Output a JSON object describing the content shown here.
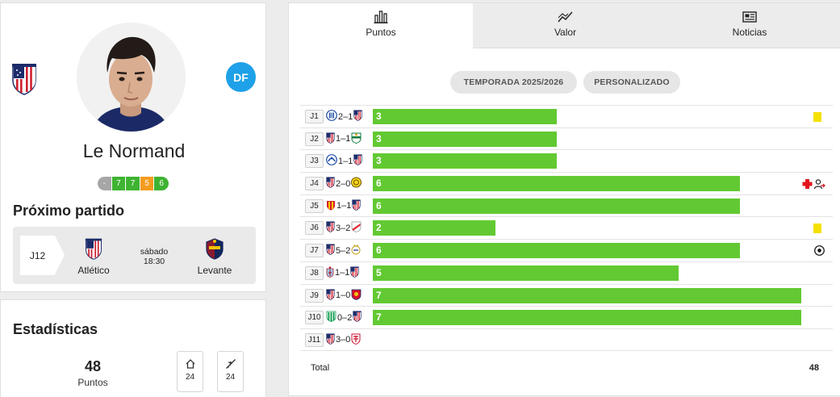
{
  "player": {
    "name": "Le Normand",
    "position": "DF",
    "form": [
      {
        "value": "-",
        "color": "#a6a6a6"
      },
      {
        "value": "7",
        "color": "#3fb332"
      },
      {
        "value": "7",
        "color": "#3fb332"
      },
      {
        "value": "5",
        "color": "#f39c1e"
      },
      {
        "value": "6",
        "color": "#3fb332"
      }
    ]
  },
  "next_match": {
    "title": "Próximo partido",
    "round": "J12",
    "home": "Atlético",
    "day": "sábado",
    "time": "18:30",
    "away": "Levante"
  },
  "stats": {
    "title": "Estadísticas",
    "total": "48",
    "total_label": "Puntos",
    "home_points": "24",
    "away_points": "24",
    "home_icon": "home-icon",
    "away_icon": "plane-icon"
  },
  "tabs": [
    {
      "label": "Puntos",
      "icon": "bar-chart-icon",
      "active": true
    },
    {
      "label": "Valor",
      "icon": "trend-line-icon",
      "active": false
    },
    {
      "label": "Noticias",
      "icon": "newspaper-icon",
      "active": false
    }
  ],
  "filters": {
    "season": "TEMPORADA 2025/2026",
    "custom": "PERSONALIZADO"
  },
  "chart_data": {
    "type": "bar",
    "orientation": "horizontal",
    "categories": [
      "J1",
      "J2",
      "J3",
      "J4",
      "J5",
      "J6",
      "J7",
      "J8",
      "J9",
      "J10",
      "J11"
    ],
    "values": [
      3,
      3,
      3,
      6,
      6,
      2,
      6,
      5,
      7,
      7,
      null
    ],
    "xlim": [
      0,
      7
    ],
    "bar_color": "#62c932",
    "matches": [
      {
        "round": "J1",
        "home": "espanyol",
        "score": "2–1",
        "away": "atletico",
        "points": "3",
        "event": "yellow-card"
      },
      {
        "round": "J2",
        "home": "atletico",
        "score": "1–1",
        "away": "elche",
        "points": "3",
        "event": ""
      },
      {
        "round": "J3",
        "home": "alaves",
        "score": "1–1",
        "away": "atletico",
        "points": "3",
        "event": ""
      },
      {
        "round": "J4",
        "home": "atletico",
        "score": "2–0",
        "away": "villarreal",
        "points": "6",
        "event": "injury-substitution"
      },
      {
        "round": "J5",
        "home": "mallorca",
        "score": "1–1",
        "away": "atletico",
        "points": "6",
        "event": ""
      },
      {
        "round": "J6",
        "home": "atletico",
        "score": "3–2",
        "away": "rayo",
        "points": "2",
        "event": "yellow-card"
      },
      {
        "round": "J7",
        "home": "atletico",
        "score": "5–2",
        "away": "real-madrid",
        "points": "6",
        "event": "goal"
      },
      {
        "round": "J8",
        "home": "celta",
        "score": "1–1",
        "away": "atletico",
        "points": "5",
        "event": ""
      },
      {
        "round": "J9",
        "home": "atletico",
        "score": "1–0",
        "away": "osasuna",
        "points": "7",
        "event": ""
      },
      {
        "round": "J10",
        "home": "betis",
        "score": "0–2",
        "away": "atletico",
        "points": "7",
        "event": ""
      },
      {
        "round": "J11",
        "home": "atletico",
        "score": "3–0",
        "away": "sevilla",
        "points": "",
        "event": ""
      }
    ],
    "total_label": "Total",
    "total": "48"
  }
}
